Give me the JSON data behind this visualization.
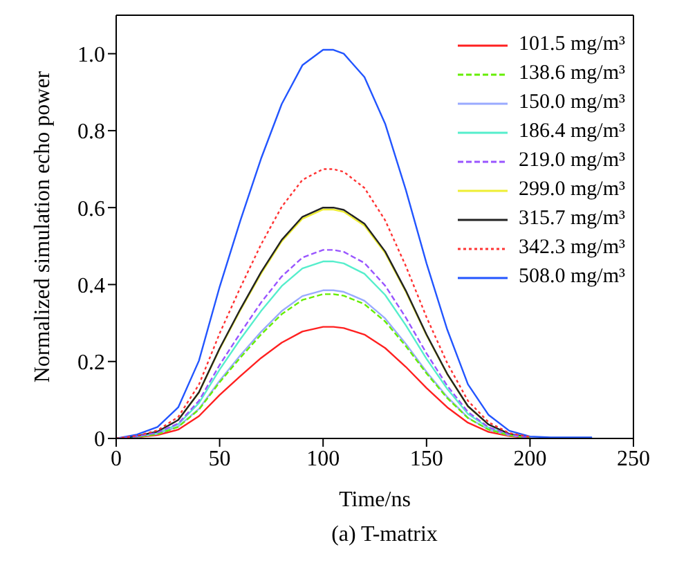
{
  "chart_data": {
    "type": "line",
    "title": "(a) T-matrix",
    "xlabel": "Time/ns",
    "ylabel": "Normalized simulation echo power",
    "xlim": [
      0,
      250
    ],
    "xticks": [
      0,
      50,
      100,
      150,
      200,
      250
    ],
    "ylim": [
      0,
      1.1
    ],
    "yticks": [
      {
        "value": 0,
        "label": "0"
      },
      0.2,
      0.4,
      0.6,
      0.8,
      {
        "value": 1,
        "label": "1.0"
      }
    ],
    "legend": "top right",
    "grid": false,
    "marker": "none",
    "x": [
      0,
      10,
      20,
      30,
      40,
      50,
      60,
      70,
      80,
      90,
      100,
      105,
      110,
      120,
      130,
      140,
      150,
      160,
      170,
      180,
      190,
      200,
      210,
      230
    ],
    "series": [
      {
        "name": "101.5 mg/m³",
        "color": "#ff2020",
        "line_style": "solid",
        "values": [
          0,
          0.003,
          0.009,
          0.023,
          0.058,
          0.113,
          0.162,
          0.209,
          0.249,
          0.278,
          0.29,
          0.29,
          0.287,
          0.27,
          0.235,
          0.186,
          0.131,
          0.081,
          0.041,
          0.017,
          0.006,
          0.001,
          null,
          null
        ]
      },
      {
        "name": "138.6 mg/m³",
        "color": "#66ee00",
        "line_style": "dashed",
        "values": [
          0,
          0.004,
          0.011,
          0.03,
          0.075,
          0.146,
          0.21,
          0.27,
          0.323,
          0.36,
          0.375,
          0.375,
          0.371,
          0.349,
          0.304,
          0.24,
          0.169,
          0.105,
          0.053,
          0.023,
          0.008,
          0.002,
          null,
          null
        ]
      },
      {
        "name": "150.0 mg/m³",
        "color": "#99aaff",
        "line_style": "solid",
        "values": [
          0,
          0.004,
          0.012,
          0.031,
          0.077,
          0.15,
          0.216,
          0.277,
          0.331,
          0.37,
          0.385,
          0.385,
          0.381,
          0.358,
          0.312,
          0.246,
          0.173,
          0.108,
          0.054,
          0.023,
          0.008,
          0.002,
          null,
          null
        ]
      },
      {
        "name": "186.4 mg/m³",
        "color": "#55eecc",
        "line_style": "solid",
        "values": [
          0,
          0.005,
          0.014,
          0.037,
          0.092,
          0.179,
          0.258,
          0.331,
          0.396,
          0.442,
          0.46,
          0.46,
          0.455,
          0.428,
          0.373,
          0.294,
          0.207,
          0.129,
          0.064,
          0.028,
          0.009,
          0.002,
          null,
          null
        ]
      },
      {
        "name": "219.0 mg/m³",
        "color": "#9955ff",
        "line_style": "dashed",
        "values": [
          0,
          0.005,
          0.015,
          0.039,
          0.098,
          0.191,
          0.274,
          0.353,
          0.421,
          0.47,
          0.49,
          0.49,
          0.485,
          0.456,
          0.397,
          0.314,
          0.221,
          0.137,
          0.069,
          0.029,
          0.01,
          0.002,
          null,
          null
        ]
      },
      {
        "name": "299.0 mg/m³",
        "color": "#eeee33",
        "line_style": "solid",
        "values": [
          null,
          null,
          null,
          0.048,
          0.119,
          0.232,
          0.333,
          0.428,
          0.512,
          0.571,
          0.595,
          0.595,
          0.589,
          0.553,
          0.482,
          0.381,
          0.268,
          0.167,
          0.083,
          0.036,
          null,
          null,
          null,
          null
        ]
      },
      {
        "name": "315.7 mg/m³",
        "color": "#222222",
        "line_style": "solid",
        "values": [
          0,
          0.006,
          0.018,
          0.048,
          0.12,
          0.234,
          0.336,
          0.432,
          0.516,
          0.576,
          0.6,
          0.6,
          0.594,
          0.558,
          0.486,
          0.384,
          0.27,
          0.168,
          0.084,
          0.036,
          0.012,
          0.003,
          null,
          null
        ]
      },
      {
        "name": "342.3 mg/m³",
        "color": "#ff3333",
        "line_style": "dotted",
        "values": [
          0,
          0.007,
          0.021,
          0.056,
          0.14,
          0.273,
          0.392,
          0.504,
          0.602,
          0.672,
          0.7,
          0.7,
          0.693,
          0.651,
          0.567,
          0.448,
          0.315,
          0.196,
          0.098,
          0.042,
          0.014,
          0.004,
          null,
          null
        ]
      },
      {
        "name": "508.0 mg/m³",
        "color": "#2255ff",
        "line_style": "solid",
        "values": [
          0,
          0.01,
          0.03,
          0.081,
          0.202,
          0.394,
          0.566,
          0.727,
          0.869,
          0.97,
          1.01,
          1.01,
          1,
          0.939,
          0.818,
          0.646,
          0.455,
          0.283,
          0.141,
          0.061,
          0.02,
          0.005,
          0.003,
          0.003
        ]
      }
    ]
  }
}
